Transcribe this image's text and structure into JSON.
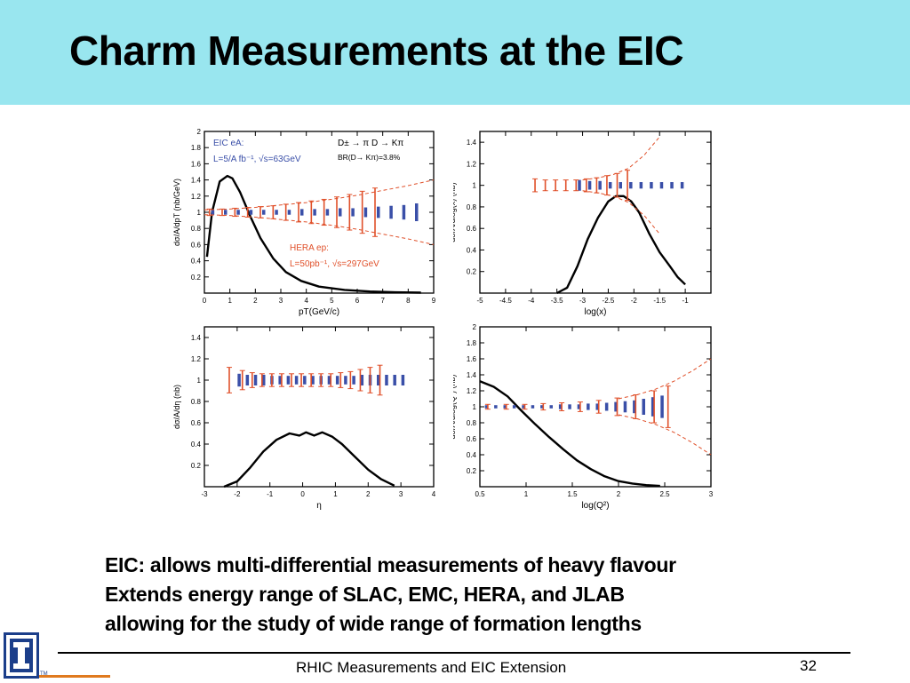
{
  "slide": {
    "title": "Charm Measurements at the EIC",
    "bullets": [
      "EIC: allows multi-differential measurements of heavy flavour",
      "Extends energy range of SLAC, EMC, HERA, and JLAB",
      "allowing for the study of wide range of formation lengths"
    ],
    "footer": "RHIC Measurements and EIC Extension",
    "page_number": "32",
    "logo": {
      "icon": "university-i-logo-icon",
      "tm": "TM",
      "colors": {
        "blue": "#1b3e8a",
        "orange": "#e07a1f"
      }
    },
    "colors": {
      "title_bar": "#99e6ef",
      "eic_points": "#3a4fa8",
      "hera_points": "#e0502a",
      "curve": "#000000"
    }
  },
  "chart_data": [
    {
      "type": "line",
      "xlabel": "pT(GeV/c)",
      "ylabel": "dσ/A/dpT (nb/GeV)",
      "xlim": [
        0,
        9
      ],
      "ylim": [
        0,
        2
      ],
      "xticks": [
        0,
        1,
        2,
        3,
        4,
        5,
        6,
        7,
        8,
        9
      ],
      "yticks": [
        0.2,
        0.4,
        0.6,
        0.8,
        1,
        1.2,
        1.4,
        1.6,
        1.8,
        2
      ],
      "annotations": [
        {
          "text": "EIC eA:",
          "color": "#3a4fa8"
        },
        {
          "text": "L=5/A fb⁻¹, √s=63GeV",
          "color": "#3a4fa8"
        },
        {
          "text": "D± → π D → Kπ",
          "color": "#000000"
        },
        {
          "text": "BR(D→ Kπ)=3.8%",
          "color": "#000000"
        },
        {
          "text": "HERA ep:",
          "color": "#e0502a"
        },
        {
          "text": "L=50pb⁻¹, √s=297GeV",
          "color": "#e0502a"
        }
      ],
      "series": [
        {
          "style": "curve",
          "x": [
            0.1,
            0.3,
            0.6,
            0.9,
            1.1,
            1.4,
            1.8,
            2.2,
            2.7,
            3.2,
            3.8,
            4.5,
            5.5,
            6.5,
            7.5,
            8.5
          ],
          "y": [
            0.45,
            1.0,
            1.38,
            1.45,
            1.42,
            1.25,
            0.95,
            0.68,
            0.43,
            0.26,
            0.15,
            0.08,
            0.04,
            0.02,
            0.01,
            0.005
          ]
        },
        {
          "style": "eic",
          "x": [
            0.25,
            0.75,
            1.25,
            1.75,
            2.25,
            2.75,
            3.25,
            3.75,
            4.25,
            4.75,
            5.25,
            5.75,
            6.25,
            6.75,
            7.25,
            7.75,
            8.25
          ],
          "y": [
            1,
            1,
            1,
            1,
            1,
            1,
            1,
            1,
            1,
            1,
            1,
            1,
            1,
            1,
            1,
            1,
            1
          ],
          "err": [
            0.03,
            0.03,
            0.03,
            0.03,
            0.03,
            0.03,
            0.03,
            0.04,
            0.04,
            0.04,
            0.05,
            0.05,
            0.06,
            0.07,
            0.08,
            0.09,
            0.11
          ]
        },
        {
          "style": "hera",
          "x": [
            0.25,
            0.75,
            1.25,
            1.75,
            2.25,
            2.75,
            3.25,
            3.75,
            4.25,
            4.75,
            5.25,
            5.75,
            6.25,
            6.75
          ],
          "y": [
            1,
            1,
            1,
            1,
            1,
            1,
            1,
            1,
            1,
            1,
            1,
            1,
            1,
            1
          ],
          "err": [
            0.04,
            0.04,
            0.05,
            0.06,
            0.07,
            0.08,
            0.1,
            0.12,
            0.14,
            0.16,
            0.19,
            0.22,
            0.26,
            0.3
          ]
        },
        {
          "style": "band",
          "x": [
            0,
            1,
            2,
            3,
            4,
            5,
            6,
            7,
            8,
            9
          ],
          "y": [
            1,
            1,
            1,
            1,
            1,
            1,
            1,
            1,
            1,
            1
          ],
          "err": [
            0.03,
            0.04,
            0.06,
            0.09,
            0.12,
            0.16,
            0.21,
            0.27,
            0.33,
            0.4
          ]
        }
      ]
    },
    {
      "type": "line",
      "xlabel": "log(x)",
      "ylabel": "dσ/A/dlog(x) (nb)",
      "xlim": [
        -5,
        -0.5
      ],
      "ylim": [
        0,
        1.5
      ],
      "xticks": [
        -5,
        -4.5,
        -4,
        -3.5,
        -3,
        -2.5,
        -2,
        -1.5,
        -1
      ],
      "yticks": [
        0.2,
        0.4,
        0.6,
        0.8,
        1,
        1.2,
        1.4
      ],
      "series": [
        {
          "style": "curve",
          "x": [
            -3.5,
            -3.3,
            -3.1,
            -2.9,
            -2.7,
            -2.5,
            -2.35,
            -2.2,
            -2.05,
            -1.9,
            -1.7,
            -1.5,
            -1.3,
            -1.15,
            -1.0
          ],
          "y": [
            0,
            0.05,
            0.25,
            0.5,
            0.7,
            0.85,
            0.9,
            0.9,
            0.85,
            0.75,
            0.55,
            0.38,
            0.25,
            0.15,
            0.08
          ]
        },
        {
          "style": "eic",
          "x": [
            -3.1,
            -2.9,
            -2.7,
            -2.5,
            -2.3,
            -2.1,
            -1.9,
            -1.7,
            -1.5,
            -1.3,
            -1.1
          ],
          "y": [
            1,
            1,
            1,
            1,
            1,
            1,
            1,
            1,
            1,
            1,
            1
          ],
          "err": [
            0.05,
            0.04,
            0.04,
            0.03,
            0.03,
            0.03,
            0.03,
            0.03,
            0.03,
            0.03,
            0.03
          ]
        },
        {
          "style": "hera",
          "x": [
            -3.9,
            -3.7,
            -3.5,
            -3.3,
            -3.1,
            -2.9,
            -2.7,
            -2.5,
            -2.3,
            -2.1
          ],
          "y": [
            1,
            1,
            1,
            1,
            1,
            1,
            1,
            1,
            1,
            1
          ],
          "err": [
            0.06,
            0.05,
            0.05,
            0.05,
            0.05,
            0.06,
            0.07,
            0.09,
            0.11,
            0.14
          ]
        },
        {
          "style": "band",
          "x": [
            -3,
            -2.7,
            -2.4,
            -2.1,
            -1.8,
            -1.5
          ],
          "y": [
            1,
            1,
            1,
            1,
            1,
            1
          ],
          "err": [
            0.05,
            0.07,
            0.1,
            0.16,
            0.28,
            0.45
          ]
        }
      ]
    },
    {
      "type": "line",
      "xlabel": "η",
      "ylabel": "dσ/A/dη (nb)",
      "xlim": [
        -3,
        4
      ],
      "ylim": [
        0,
        1.5
      ],
      "xticks": [
        -3,
        -2,
        -1,
        0,
        1,
        2,
        3,
        4
      ],
      "yticks": [
        0.2,
        0.4,
        0.6,
        0.8,
        1,
        1.2,
        1.4
      ],
      "series": [
        {
          "style": "curve",
          "x": [
            -2.4,
            -2.0,
            -1.6,
            -1.2,
            -0.8,
            -0.4,
            -0.1,
            0.1,
            0.35,
            0.6,
            0.9,
            1.2,
            1.6,
            2.0,
            2.4,
            2.8
          ],
          "y": [
            0,
            0.05,
            0.18,
            0.33,
            0.44,
            0.5,
            0.48,
            0.51,
            0.48,
            0.51,
            0.47,
            0.4,
            0.28,
            0.16,
            0.07,
            0.01
          ]
        },
        {
          "style": "eic",
          "x": [
            -2.0,
            -1.75,
            -1.5,
            -1.25,
            -1.0,
            -0.75,
            -0.5,
            -0.25,
            0,
            0.25,
            0.5,
            0.75,
            1.0,
            1.25,
            1.5,
            1.75,
            2.0,
            2.25,
            2.5,
            2.75,
            3.0
          ],
          "y": [
            1,
            1,
            1,
            1,
            1,
            1,
            1,
            1,
            1,
            1,
            1,
            1,
            1,
            1,
            1,
            1,
            1,
            1,
            1,
            1,
            1
          ],
          "err": [
            0.06,
            0.05,
            0.05,
            0.05,
            0.04,
            0.04,
            0.04,
            0.04,
            0.04,
            0.04,
            0.04,
            0.04,
            0.04,
            0.04,
            0.04,
            0.05,
            0.05,
            0.05,
            0.05,
            0.05,
            0.05
          ]
        },
        {
          "style": "hera",
          "x": [
            -2.2,
            -1.8,
            -1.5,
            -1.2,
            -0.9,
            -0.6,
            -0.3,
            0,
            0.3,
            0.6,
            0.9,
            1.2,
            1.5,
            1.8,
            2.1,
            2.4
          ],
          "y": [
            1,
            1,
            1,
            1,
            1,
            1,
            1,
            1,
            1,
            1,
            1,
            1,
            1,
            1,
            1,
            1
          ],
          "err": [
            0.12,
            0.09,
            0.07,
            0.06,
            0.06,
            0.06,
            0.06,
            0.06,
            0.06,
            0.06,
            0.06,
            0.07,
            0.08,
            0.1,
            0.12,
            0.14
          ]
        }
      ]
    },
    {
      "type": "line",
      "xlabel": "log(Q²)",
      "ylabel": "dσ/A/dlog(Q²) (nb)",
      "xlim": [
        0.5,
        3
      ],
      "ylim": [
        0,
        2
      ],
      "xticks": [
        0.5,
        1,
        1.5,
        2,
        2.5,
        3
      ],
      "yticks": [
        0.2,
        0.4,
        0.6,
        0.8,
        1,
        1.2,
        1.4,
        1.6,
        1.8,
        2
      ],
      "series": [
        {
          "style": "curve",
          "x": [
            0.5,
            0.65,
            0.8,
            0.95,
            1.1,
            1.25,
            1.4,
            1.55,
            1.7,
            1.85,
            2.0,
            2.15,
            2.3,
            2.45
          ],
          "y": [
            1.32,
            1.25,
            1.13,
            0.95,
            0.78,
            0.62,
            0.47,
            0.33,
            0.22,
            0.13,
            0.07,
            0.04,
            0.02,
            0.01
          ]
        },
        {
          "style": "eic",
          "x": [
            0.55,
            0.65,
            0.75,
            0.85,
            0.95,
            1.05,
            1.15,
            1.25,
            1.35,
            1.45,
            1.55,
            1.65,
            1.75,
            1.85,
            1.95,
            2.05,
            2.15,
            2.25,
            2.35,
            2.45
          ],
          "y": [
            1,
            1,
            1,
            1,
            1,
            1,
            1,
            1,
            1,
            1,
            1,
            1,
            1,
            1,
            1,
            1,
            1,
            1,
            1,
            1
          ],
          "err": [
            0.02,
            0.02,
            0.02,
            0.02,
            0.02,
            0.02,
            0.02,
            0.02,
            0.03,
            0.03,
            0.03,
            0.04,
            0.04,
            0.05,
            0.06,
            0.07,
            0.08,
            0.1,
            0.12,
            0.14
          ]
        },
        {
          "style": "hera",
          "x": [
            0.6,
            0.8,
            1.0,
            1.2,
            1.4,
            1.6,
            1.8,
            2.0,
            2.2,
            2.4,
            2.55
          ],
          "y": [
            1,
            1,
            1,
            1,
            1,
            1,
            1,
            1,
            1,
            1,
            1
          ],
          "err": [
            0.03,
            0.03,
            0.03,
            0.04,
            0.05,
            0.06,
            0.08,
            0.11,
            0.15,
            0.2,
            0.26
          ]
        },
        {
          "style": "band",
          "x": [
            2.0,
            2.2,
            2.4,
            2.6,
            2.8,
            3.0
          ],
          "y": [
            1,
            1,
            1,
            1,
            1,
            1
          ],
          "err": [
            0.1,
            0.15,
            0.22,
            0.32,
            0.45,
            0.6
          ]
        }
      ]
    }
  ]
}
